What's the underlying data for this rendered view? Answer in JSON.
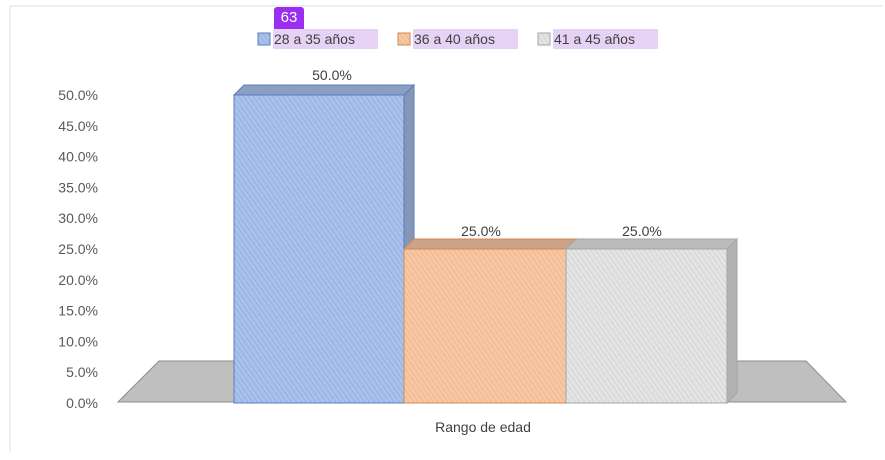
{
  "annotation_badge": "63",
  "chart_data": {
    "type": "bar",
    "categories": [
      "Rango de edad"
    ],
    "series": [
      {
        "name": "28 a 35 años",
        "values": [
          50.0
        ],
        "color": "#a9c2ec",
        "edge_color": "#5a7bbd"
      },
      {
        "name": "36 a 40 años",
        "values": [
          25.0
        ],
        "color": "#f7c7a3",
        "edge_color": "#d08a56"
      },
      {
        "name": "41 a 45 años",
        "values": [
          25.0
        ],
        "color": "#e4e4e4",
        "edge_color": "#a6a6a6"
      }
    ],
    "data_labels": [
      "50.0%",
      "25.0%",
      "25.0%"
    ],
    "y_ticks": [
      "0.0%",
      "5.0%",
      "10.0%",
      "15.0%",
      "20.0%",
      "25.0%",
      "30.0%",
      "35.0%",
      "40.0%",
      "45.0%",
      "50.0%"
    ],
    "ylim": [
      0,
      50
    ],
    "xlabel": "Rango de edad",
    "ylabel": "",
    "title": "",
    "legend_position": "top",
    "style": "3d-column",
    "grid": false
  }
}
